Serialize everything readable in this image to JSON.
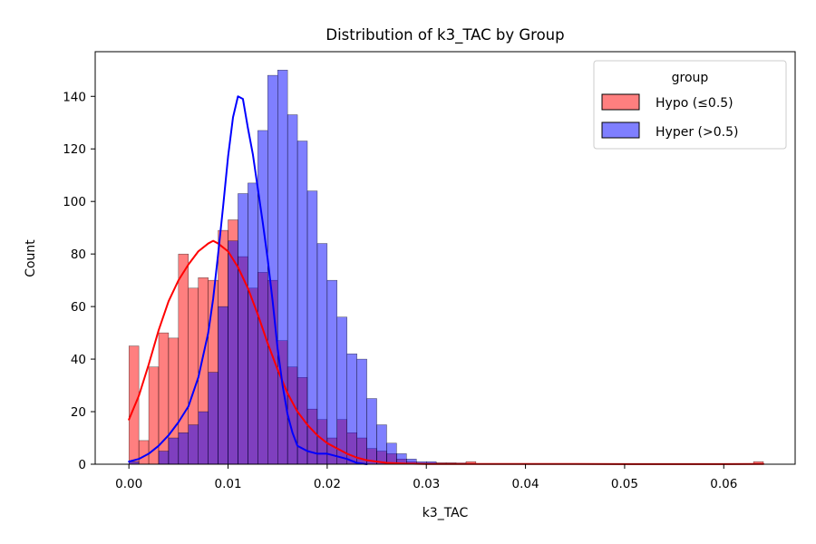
{
  "chart_data": {
    "type": "histogram",
    "title": "Distribution of k3_TAC by Group",
    "xlabel": "k3_TAC",
    "ylabel": "Count",
    "xlim": [
      -0.0034,
      0.0672
    ],
    "ylim": [
      0,
      157
    ],
    "xticks": [
      0.0,
      0.01,
      0.02,
      0.03,
      0.04,
      0.05,
      0.06
    ],
    "xtick_labels": [
      "0.00",
      "0.01",
      "0.02",
      "0.03",
      "0.04",
      "0.05",
      "0.06"
    ],
    "yticks": [
      0,
      20,
      40,
      60,
      80,
      100,
      120,
      140
    ],
    "ytick_labels": [
      "0",
      "20",
      "40",
      "60",
      "80",
      "100",
      "120",
      "140"
    ],
    "grid": false,
    "bin_start": 0.0,
    "bin_width": 0.001,
    "legend": {
      "title": "group",
      "placement": "top-right",
      "entries": [
        {
          "label": "Hypo (≤0.5)",
          "color": "#ff0000"
        },
        {
          "label": "Hyper (>0.5)",
          "color": "#0000ff"
        }
      ]
    },
    "series": [
      {
        "name": "Hypo (≤0.5)",
        "color": "#ff0000",
        "fill_opacity": 0.5,
        "values": [
          45,
          9,
          37,
          50,
          48,
          80,
          67,
          71,
          70,
          89,
          93,
          79,
          67,
          73,
          70,
          47,
          37,
          33,
          21,
          17,
          10,
          17,
          12,
          10,
          6,
          5,
          4,
          2,
          1,
          0.5,
          0.5,
          0.5,
          0.5,
          0,
          1,
          0,
          0,
          0,
          0,
          0,
          0,
          0,
          0,
          0,
          0,
          0,
          0,
          0,
          0,
          0,
          0,
          0,
          0,
          0,
          0,
          0,
          0,
          0,
          0,
          0,
          0,
          0,
          0,
          1
        ],
        "kde": {
          "x": [
            0.0,
            0.001,
            0.002,
            0.003,
            0.004,
            0.005,
            0.006,
            0.007,
            0.008,
            0.0085,
            0.009,
            0.01,
            0.011,
            0.012,
            0.013,
            0.014,
            0.015,
            0.016,
            0.017,
            0.018,
            0.019,
            0.02,
            0.021,
            0.022,
            0.023,
            0.024,
            0.025,
            0.026,
            0.028,
            0.03,
            0.035,
            0.04,
            0.05,
            0.06,
            0.064
          ],
          "y": [
            17,
            26,
            38,
            51,
            62,
            70,
            76,
            81,
            84,
            85,
            84,
            81,
            75,
            67,
            57,
            46,
            36,
            27,
            20,
            15,
            11,
            8,
            6,
            4,
            2.5,
            1.5,
            1,
            0.5,
            0.2,
            0.1,
            0.1,
            0.1,
            0.05,
            0.05,
            0.1
          ]
        }
      },
      {
        "name": "Hyper (>0.5)",
        "color": "#0000ff",
        "fill_opacity": 0.5,
        "values": [
          1,
          0,
          0,
          5,
          10,
          12,
          15,
          20,
          35,
          60,
          85,
          103,
          107,
          127,
          148,
          150,
          133,
          123,
          104,
          84,
          70,
          56,
          42,
          40,
          25,
          15,
          8,
          4,
          2,
          1,
          1,
          0.5,
          0.5,
          0.5
        ],
        "kde": {
          "x": [
            0.0,
            0.001,
            0.002,
            0.003,
            0.004,
            0.005,
            0.006,
            0.007,
            0.008,
            0.0085,
            0.009,
            0.0095,
            0.01,
            0.0105,
            0.011,
            0.0115,
            0.012,
            0.0125,
            0.013,
            0.0135,
            0.014,
            0.0145,
            0.015,
            0.0155,
            0.016,
            0.0165,
            0.017,
            0.018,
            0.019,
            0.02,
            0.021,
            0.022,
            0.023,
            0.024
          ],
          "y": [
            1,
            2,
            4,
            7,
            11,
            16,
            22,
            33,
            50,
            63,
            80,
            98,
            117,
            132,
            140,
            139,
            128,
            118,
            105,
            92,
            78,
            62,
            44,
            30,
            19,
            12,
            7,
            5,
            4,
            4,
            3,
            2,
            0.5,
            0
          ]
        }
      }
    ],
    "overlap_color": "#a3336b"
  }
}
